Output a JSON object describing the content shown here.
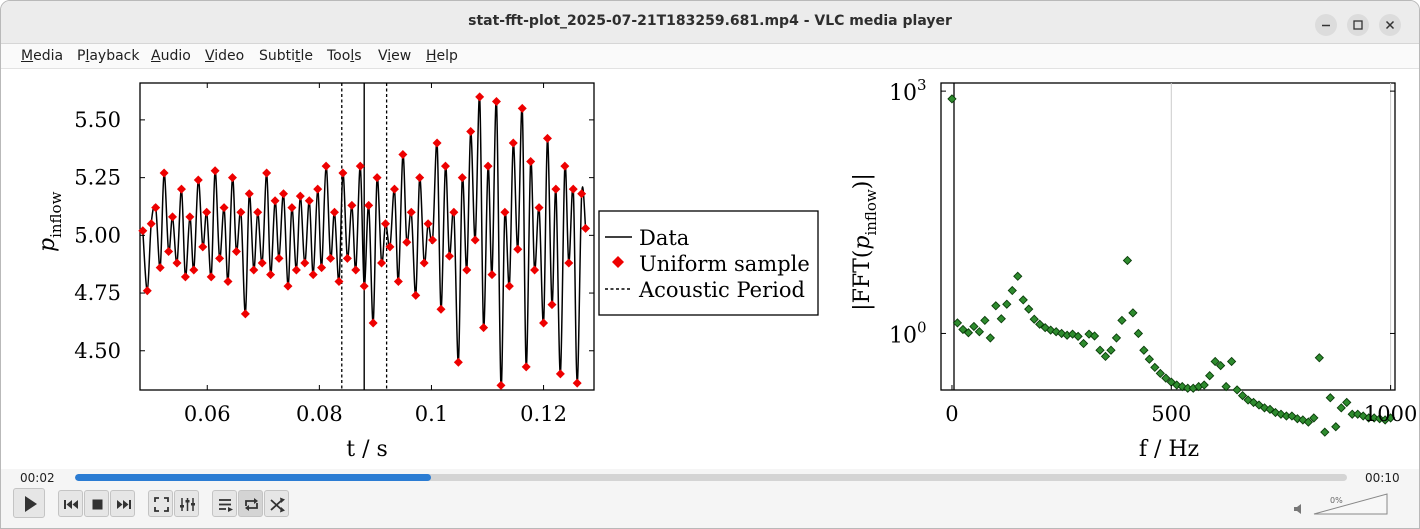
{
  "window": {
    "title": "stat-fft-plot_2025-07-21T183259.681.mp4 - VLC media player"
  },
  "menu": [
    {
      "mn": "M",
      "rest": "edia"
    },
    {
      "pre": "P",
      "mn": "l",
      "rest": "ayback"
    },
    {
      "mn": "A",
      "rest": "udio"
    },
    {
      "mn": "V",
      "rest": "ideo"
    },
    {
      "pre": "Subti",
      "mn": "t",
      "rest": "le"
    },
    {
      "pre": "Too",
      "mn": "l",
      "rest": "s"
    },
    {
      "pre": "V",
      "mn": "i",
      "rest": "ew"
    },
    {
      "mn": "H",
      "rest": "elp"
    }
  ],
  "player": {
    "elapsed": "00:02",
    "duration": "00:10",
    "progress": 0.28,
    "volume": "0%",
    "volume_level": 0
  },
  "icons": {
    "play": "play-icon",
    "prev": "skip-back-icon",
    "stop": "stop-icon",
    "next": "skip-forward-icon",
    "fullscreen": "fullscreen-icon",
    "extended": "equalizer-icon",
    "playlist": "playlist-icon",
    "loop": "loop-icon",
    "shuffle": "shuffle-icon",
    "volume": "speaker-icon"
  },
  "chart_data": [
    {
      "type": "line",
      "ylabel_main": "p",
      "ylabel_sub": "inflow",
      "xlabel": "t / s",
      "xticks": [
        "0.06",
        "0.08",
        "0.1",
        "0.12"
      ],
      "yticks": [
        "4.50",
        "4.75",
        "5.00",
        "5.25",
        "5.50"
      ],
      "xlim": [
        0.048,
        0.129
      ],
      "ylim": [
        4.33,
        5.66
      ],
      "legend_position": "right",
      "legend": [
        "Data",
        "Uniform sample",
        "Acoustic Period"
      ],
      "vlines": {
        "solid": 0.088,
        "dashed": [
          0.084,
          0.092
        ]
      },
      "series": [
        {
          "name": "Data",
          "x": [
            0.0485,
            0.0493,
            0.05,
            0.0508,
            0.0516,
            0.0523,
            0.0531,
            0.0538,
            0.0546,
            0.0554,
            0.0561,
            0.0569,
            0.0576,
            0.0584,
            0.0592,
            0.0599,
            0.0607,
            0.0614,
            0.0622,
            0.063,
            0.0637,
            0.0645,
            0.0652,
            0.066,
            0.0668,
            0.0675,
            0.0683,
            0.069,
            0.0698,
            0.0706,
            0.0713,
            0.0721,
            0.0728,
            0.0736,
            0.0744,
            0.0751,
            0.0759,
            0.0766,
            0.0774,
            0.0782,
            0.0789,
            0.0797,
            0.0804,
            0.0812,
            0.082,
            0.0827,
            0.0835,
            0.0842,
            0.085,
            0.0858,
            0.0865,
            0.0873,
            0.088,
            0.0888,
            0.0896,
            0.0903,
            0.0911,
            0.0918,
            0.0926,
            0.0934,
            0.0941,
            0.0949,
            0.0956,
            0.0964,
            0.0972,
            0.0979,
            0.0987,
            0.0994,
            0.1002,
            0.101,
            0.1017,
            0.1025,
            0.1032,
            0.104,
            0.1048,
            0.1055,
            0.1063,
            0.107,
            0.1078,
            0.1086,
            0.1093,
            0.1101,
            0.1108,
            0.1116,
            0.1124,
            0.1131,
            0.1139,
            0.1146,
            0.1154,
            0.1162,
            0.1169,
            0.1177,
            0.1184,
            0.1192,
            0.12,
            0.1207,
            0.1215,
            0.1222,
            0.123,
            0.1238,
            0.1245,
            0.1253,
            0.126,
            0.1268,
            0.1275
          ],
          "y": [
            5.02,
            4.76,
            5.05,
            5.12,
            4.86,
            5.27,
            4.93,
            5.08,
            4.88,
            5.2,
            4.82,
            5.08,
            4.85,
            5.24,
            4.95,
            5.1,
            4.82,
            5.28,
            4.9,
            5.12,
            4.8,
            5.25,
            4.93,
            5.1,
            4.66,
            5.18,
            4.85,
            5.1,
            4.88,
            5.27,
            4.83,
            5.15,
            4.9,
            5.18,
            4.78,
            5.12,
            4.85,
            5.17,
            4.88,
            5.15,
            4.83,
            5.2,
            4.86,
            5.3,
            4.9,
            5.1,
            4.8,
            5.27,
            4.9,
            5.13,
            4.85,
            5.3,
            4.78,
            5.13,
            4.62,
            5.25,
            4.88,
            5.05,
            4.95,
            5.2,
            4.8,
            5.35,
            4.97,
            5.1,
            4.74,
            5.25,
            4.88,
            5.05,
            4.98,
            5.4,
            4.68,
            5.3,
            4.91,
            5.1,
            4.45,
            5.25,
            4.85,
            5.45,
            4.98,
            5.6,
            4.6,
            5.3,
            4.83,
            5.58,
            4.35,
            5.1,
            4.78,
            5.4,
            4.94,
            5.55,
            4.43,
            5.32,
            4.85,
            5.12,
            4.62,
            5.42,
            4.7,
            5.2,
            4.4,
            5.3,
            4.88,
            5.2,
            4.36,
            5.18,
            5.03
          ]
        }
      ]
    },
    {
      "type": "scatter",
      "ylabel": "|FFT(p_inflow)|",
      "xlabel": "f / Hz",
      "xticks": [
        "0",
        "500",
        "1000"
      ],
      "yticks": [
        "10^0",
        "10^3"
      ],
      "yscale": "log",
      "xlim": [
        -25,
        1010
      ],
      "ylim_log10": [
        -0.7,
        3.1
      ],
      "grid": "vertical",
      "series": [
        {
          "name": "",
          "x": [
            0,
            12.5,
            25,
            37.5,
            50,
            62.5,
            75,
            87.5,
            100,
            112.5,
            125,
            137.5,
            150,
            162.5,
            175,
            187.5,
            200,
            212.5,
            225,
            237.5,
            250,
            262.5,
            275,
            287.5,
            300,
            312.5,
            325,
            337.5,
            350,
            362.5,
            375,
            387.5,
            400,
            412.5,
            425,
            437.5,
            450,
            462.5,
            475,
            487.5,
            500,
            512.5,
            525,
            537.5,
            550,
            562.5,
            575,
            587.5,
            600,
            612.5,
            625,
            637.5,
            650,
            662.5,
            675,
            687.5,
            700,
            712.5,
            725,
            737.5,
            750,
            762.5,
            775,
            787.5,
            800,
            812.5,
            825,
            837.5,
            850,
            862.5,
            875,
            887.5,
            900,
            912.5,
            925,
            937.5,
            950,
            962.5,
            975,
            987.5,
            1000
          ],
          "y": [
            800,
            1.35,
            1.12,
            1.02,
            1.22,
            1.05,
            1.45,
            0.88,
            2.2,
            1.52,
            2.3,
            3.4,
            5.1,
            2.6,
            2.0,
            1.5,
            1.3,
            1.18,
            1.1,
            1.05,
            1.0,
            0.95,
            0.98,
            0.92,
            0.75,
            0.98,
            0.93,
            0.62,
            0.52,
            0.62,
            0.88,
            1.45,
            8.0,
            1.8,
            1.0,
            0.62,
            0.48,
            0.38,
            0.32,
            0.28,
            0.25,
            0.23,
            0.22,
            0.21,
            0.21,
            0.22,
            0.23,
            0.3,
            0.45,
            0.4,
            0.22,
            0.45,
            0.2,
            0.17,
            0.15,
            0.14,
            0.13,
            0.12,
            0.115,
            0.105,
            0.1,
            0.095,
            0.095,
            0.088,
            0.085,
            0.08,
            0.09,
            0.5,
            0.06,
            0.16,
            0.07,
            0.12,
            0.14,
            0.1,
            0.1,
            0.095,
            0.09,
            0.09,
            0.088,
            0.085,
            0.09
          ]
        }
      ]
    }
  ]
}
